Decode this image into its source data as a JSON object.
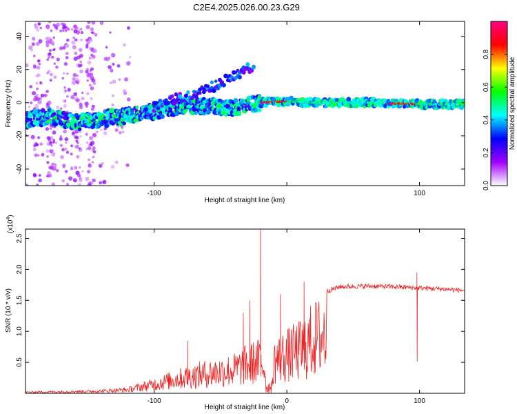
{
  "title": "C2E4.2025.026.00.23.G29",
  "chart_data": [
    {
      "type": "heatmap",
      "xlabel": "Height of straight line (km)",
      "ylabel": "Frequency (Hz)",
      "xlim": [
        -197,
        134
      ],
      "ylim": [
        -50,
        49
      ],
      "xticks": [
        -100,
        0,
        100
      ],
      "xtick_labels": [
        "-100",
        "",
        "100"
      ],
      "yticks": [
        -40,
        -20,
        0,
        20,
        40
      ],
      "ytick_labels": [
        "-40",
        "-20",
        "0",
        "20",
        "40"
      ],
      "ridge": [
        {
          "x": -197,
          "y": -11
        },
        {
          "x": -180,
          "y": -8
        },
        {
          "x": -160,
          "y": -12
        },
        {
          "x": -140,
          "y": -10
        },
        {
          "x": -120,
          "y": -8
        },
        {
          "x": -100,
          "y": -5
        },
        {
          "x": -80,
          "y": -2
        },
        {
          "x": -60,
          "y": -2
        },
        {
          "x": -40,
          "y": -3
        },
        {
          "x": -25,
          "y": -1
        },
        {
          "x": -20,
          "y": 0
        },
        {
          "x": 0,
          "y": 1
        },
        {
          "x": 20,
          "y": 0
        },
        {
          "x": 60,
          "y": 0
        },
        {
          "x": 100,
          "y": -1
        },
        {
          "x": 134,
          "y": -1
        }
      ],
      "upper_branch": [
        {
          "x": -100,
          "y": -2
        },
        {
          "x": -80,
          "y": 3
        },
        {
          "x": -60,
          "y": 8
        },
        {
          "x": -45,
          "y": 14
        },
        {
          "x": -35,
          "y": 18
        },
        {
          "x": -25,
          "y": 22
        }
      ],
      "colorbar": {
        "label": "Normalized spectral amplitude",
        "range": [
          0,
          1
        ],
        "ticks": [
          0.0,
          0.2,
          0.4,
          0.6,
          0.8
        ],
        "tick_labels": [
          "0.0",
          "0.2",
          "0.4",
          "0.6",
          "0.8"
        ],
        "colors": [
          "#ffffff",
          "#a000ff",
          "#0000ff",
          "#00ffff",
          "#00ff00",
          "#ffff00",
          "#ff0000",
          "#ff0080"
        ]
      }
    },
    {
      "type": "line",
      "xlabel": "Height of straight line (km)",
      "ylabel": "SNR (10 * v/v)",
      "y_multiplier": "(x10",
      "y_multiplier_exp": "4",
      "y_multiplier_close": ")",
      "xlim": [
        -197,
        134
      ],
      "ylim": [
        0,
        2.65
      ],
      "xticks": [
        -100,
        0,
        100
      ],
      "xtick_labels": [
        "-100",
        "0",
        "100"
      ],
      "yticks": [
        0.5,
        1.0,
        1.5,
        2.0,
        2.5
      ],
      "ytick_labels": [
        "0.5",
        "1.0",
        "1.5",
        "2.0",
        "2.5"
      ],
      "color": "#ee2222",
      "envelope": [
        {
          "x": -197,
          "y": 0.03
        },
        {
          "x": -160,
          "y": 0.05
        },
        {
          "x": -140,
          "y": 0.06
        },
        {
          "x": -120,
          "y": 0.1
        },
        {
          "x": -100,
          "y": 0.25
        },
        {
          "x": -80,
          "y": 0.42
        },
        {
          "x": -60,
          "y": 0.55
        },
        {
          "x": -40,
          "y": 0.65
        },
        {
          "x": -30,
          "y": 0.8
        },
        {
          "x": -20,
          "y": 0.9
        },
        {
          "x": -12,
          "y": 0.4
        },
        {
          "x": -10,
          "y": 0.9
        },
        {
          "x": 0,
          "y": 1.05
        },
        {
          "x": 10,
          "y": 1.2
        },
        {
          "x": 20,
          "y": 1.5
        },
        {
          "x": 30,
          "y": 1.65
        },
        {
          "x": 40,
          "y": 1.72
        },
        {
          "x": 60,
          "y": 1.73
        },
        {
          "x": 80,
          "y": 1.72
        },
        {
          "x": 100,
          "y": 1.7
        },
        {
          "x": 120,
          "y": 1.68
        },
        {
          "x": 134,
          "y": 1.66
        }
      ],
      "spikes": [
        {
          "x": -20,
          "y": 2.65
        },
        {
          "x": -28,
          "y": 1.5
        },
        {
          "x": -33,
          "y": 1.3
        },
        {
          "x": -75,
          "y": 0.85
        },
        {
          "x": -5,
          "y": 1.6
        },
        {
          "x": 13,
          "y": 1.8
        },
        {
          "x": 98,
          "y": 1.95
        }
      ]
    }
  ]
}
